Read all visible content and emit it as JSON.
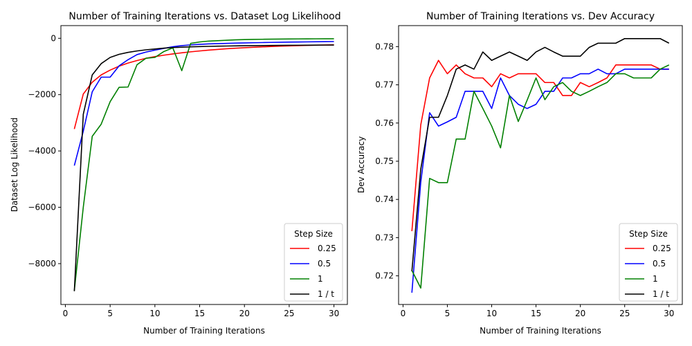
{
  "chart_data": [
    {
      "type": "line",
      "title": "Number of Training Iterations vs. Dataset Log Likelihood",
      "xlabel": "Number of Training Iterations",
      "ylabel": "Dataset Log Likelihood",
      "xlim": [
        -0.5,
        31.5
      ],
      "ylim": [
        -9450,
        450
      ],
      "xticks": [
        0,
        5,
        10,
        15,
        20,
        25,
        30
      ],
      "yticks": [
        -8000,
        -6000,
        -4000,
        -2000,
        0
      ],
      "legend": {
        "title": "Step Size",
        "placement": "lower right"
      },
      "x": [
        1,
        2,
        3,
        4,
        5,
        6,
        7,
        8,
        9,
        10,
        11,
        12,
        13,
        14,
        15,
        16,
        17,
        18,
        19,
        20,
        21,
        22,
        23,
        24,
        25,
        26,
        27,
        28,
        29,
        30
      ],
      "series": [
        {
          "name": "0.25",
          "color": "#ff0000",
          "values": [
            -3220,
            -1980,
            -1560,
            -1300,
            -1130,
            -990,
            -880,
            -790,
            -710,
            -650,
            -600,
            -555,
            -515,
            -480,
            -450,
            -420,
            -395,
            -372,
            -352,
            -335,
            -320,
            -305,
            -292,
            -280,
            -270,
            -260,
            -252,
            -245,
            -238,
            -232
          ]
        },
        {
          "name": "0.5",
          "color": "#0000ff",
          "values": [
            -4520,
            -3300,
            -1900,
            -1380,
            -1380,
            -980,
            -760,
            -580,
            -490,
            -420,
            -360,
            -300,
            -260,
            -235,
            -215,
            -200,
            -190,
            -180,
            -172,
            -165,
            -158,
            -152,
            -146,
            -141,
            -136,
            -131,
            -127,
            -123,
            -119,
            -115
          ]
        },
        {
          "name": "1",
          "color": "#008000",
          "values": [
            -8950,
            -6000,
            -3480,
            -3050,
            -2250,
            -1740,
            -1730,
            -940,
            -710,
            -680,
            -470,
            -340,
            -1150,
            -180,
            -130,
            -100,
            -85,
            -70,
            -55,
            -45,
            -40,
            -35,
            -30,
            -27,
            -25,
            -23,
            -21,
            -20,
            -19,
            -18
          ]
        },
        {
          "name": "1 / t",
          "color": "#000000",
          "values": [
            -8980,
            -2700,
            -1300,
            -900,
            -680,
            -570,
            -500,
            -450,
            -410,
            -380,
            -350,
            -330,
            -315,
            -305,
            -295,
            -287,
            -280,
            -275,
            -270,
            -265,
            -262,
            -258,
            -255,
            -252,
            -249,
            -247,
            -245,
            -243,
            -241,
            -240
          ]
        }
      ]
    },
    {
      "type": "line",
      "title": "Number of Training Iterations vs. Dev Accuracy",
      "xlabel": "Number of Training Iterations",
      "ylabel": "Dev Accuracy",
      "xlim": [
        -0.5,
        31.5
      ],
      "ylim": [
        0.7125,
        0.7855
      ],
      "xticks": [
        0,
        5,
        10,
        15,
        20,
        25,
        30
      ],
      "yticks": [
        0.72,
        0.73,
        0.74,
        0.75,
        0.76,
        0.77,
        0.78
      ],
      "legend": {
        "title": "Step Size",
        "placement": "lower right"
      },
      "x": [
        1,
        2,
        3,
        4,
        5,
        6,
        7,
        8,
        9,
        10,
        11,
        12,
        13,
        14,
        15,
        16,
        17,
        18,
        19,
        20,
        21,
        22,
        23,
        24,
        25,
        26,
        27,
        28,
        29,
        30
      ],
      "series": [
        {
          "name": "0.25",
          "color": "#ff0000",
          "values": [
            0.7317,
            0.7595,
            0.7718,
            0.7764,
            0.7729,
            0.7752,
            0.7729,
            0.7718,
            0.7718,
            0.7695,
            0.7729,
            0.7718,
            0.7729,
            0.7729,
            0.7729,
            0.7706,
            0.7706,
            0.7672,
            0.7672,
            0.7706,
            0.7695,
            0.7706,
            0.7718,
            0.7752,
            0.7752,
            0.7752,
            0.7752,
            0.7752,
            0.7741,
            0.7741
          ]
        },
        {
          "name": "0.5",
          "color": "#0000ff",
          "values": [
            0.7156,
            0.7445,
            0.7627,
            0.7592,
            0.7603,
            0.7615,
            0.7683,
            0.7683,
            0.7683,
            0.7638,
            0.7718,
            0.7672,
            0.7649,
            0.7638,
            0.7649,
            0.7683,
            0.7683,
            0.7718,
            0.7718,
            0.7729,
            0.7729,
            0.7741,
            0.7729,
            0.7729,
            0.7741,
            0.7741,
            0.7741,
            0.7741,
            0.7741,
            0.7741
          ]
        },
        {
          "name": "1",
          "color": "#008000",
          "values": [
            0.7214,
            0.7168,
            0.7455,
            0.7444,
            0.7444,
            0.7558,
            0.7558,
            0.7683,
            0.7638,
            0.7592,
            0.7535,
            0.7672,
            0.7604,
            0.766,
            0.7718,
            0.7661,
            0.7695,
            0.7706,
            0.7683,
            0.7672,
            0.7683,
            0.7695,
            0.7706,
            0.7729,
            0.7729,
            0.7718,
            0.7718,
            0.7718,
            0.7741,
            0.7752
          ]
        },
        {
          "name": "1 / t",
          "color": "#000000",
          "values": [
            0.7212,
            0.7479,
            0.7615,
            0.7615,
            0.7672,
            0.7741,
            0.7752,
            0.7741,
            0.7786,
            0.7764,
            0.7775,
            0.7786,
            0.7775,
            0.7764,
            0.7786,
            0.7798,
            0.7786,
            0.7775,
            0.7775,
            0.7775,
            0.7798,
            0.7809,
            0.7809,
            0.7809,
            0.7821,
            0.7821,
            0.7821,
            0.7821,
            0.7821,
            0.7809
          ]
        }
      ]
    }
  ]
}
